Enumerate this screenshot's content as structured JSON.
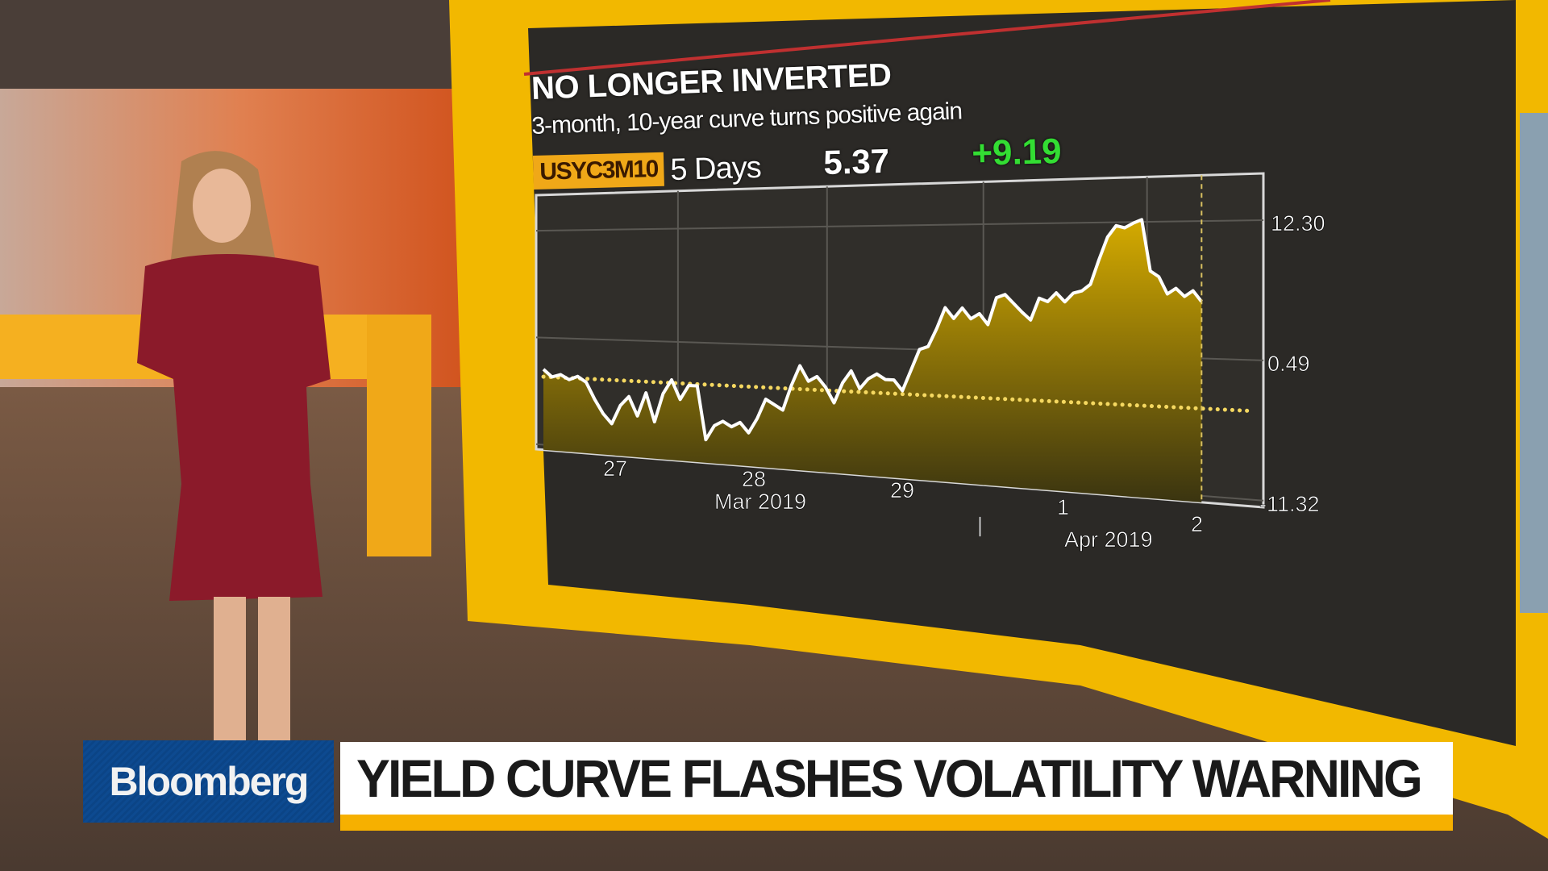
{
  "broadcast": {
    "brand": "Bloomberg",
    "headline": "YIELD CURVE FLASHES VOLATILITY WARNING",
    "colors": {
      "brand_blue": "#0d4a90",
      "accent_yellow": "#f6b000",
      "screen_frame": "#f2b800",
      "positive_green": "#33dd33"
    }
  },
  "chart_header": {
    "title": "NO LONGER INVERTED",
    "subtitle": "3-month, 10-year curve turns positive again",
    "ticker": "USYC3M10",
    "period": "5 Days",
    "last_value": "5.37",
    "change": "+9.19"
  },
  "chart_data": {
    "type": "area",
    "title": "NO LONGER INVERTED",
    "subtitle": "3-month, 10-year curve turns positive again",
    "xlabel": "",
    "ylabel": "",
    "x_tick_labels": [
      {
        "day": "27",
        "month": ""
      },
      {
        "day": "28",
        "month": "Mar 2019"
      },
      {
        "day": "29",
        "month": ""
      },
      {
        "day": "|",
        "month": ""
      },
      {
        "day": "1",
        "month": "Apr 2019"
      },
      {
        "day": "2",
        "month": ""
      }
    ],
    "y_ticks": [
      "12.30",
      "0.49",
      "-11.32"
    ],
    "ylim": [
      -11.32,
      12.3
    ],
    "grid": true,
    "reference_line": {
      "value": -3.82,
      "style": "dotted",
      "color": "#f5d860"
    },
    "series": [
      {
        "color": "#ffffff",
        "fill": "#c9a200",
        "values": [
          -3.0,
          -3.8,
          -3.5,
          -4.0,
          -3.6,
          -4.2,
          -6.0,
          -7.5,
          -8.5,
          -6.5,
          -5.5,
          -7.5,
          -5.0,
          -8.0,
          -5.0,
          -3.5,
          -5.5,
          -4.0,
          -4.0,
          -9.5,
          -8.0,
          -7.5,
          -8.0,
          -7.5,
          -8.5,
          -7.0,
          -5.0,
          -5.5,
          -6.0,
          -3.5,
          -1.5,
          -3.0,
          -2.5,
          -3.5,
          -5.0,
          -3.0,
          -1.8,
          -3.5,
          -2.5,
          -2.0,
          -2.5,
          -2.5,
          -3.5,
          -1.5,
          0.5,
          0.8,
          2.5,
          4.5,
          3.5,
          4.5,
          3.5,
          4.0,
          3.0,
          5.5,
          5.8,
          5.0,
          4.2,
          3.5,
          5.5,
          5.2,
          6.0,
          5.2,
          6.0,
          6.2,
          6.8,
          9.0,
          11.0,
          12.0,
          11.8,
          12.2,
          12.5,
          8.0,
          7.5,
          6.0,
          6.5,
          5.8,
          6.3,
          5.37
        ]
      }
    ]
  }
}
